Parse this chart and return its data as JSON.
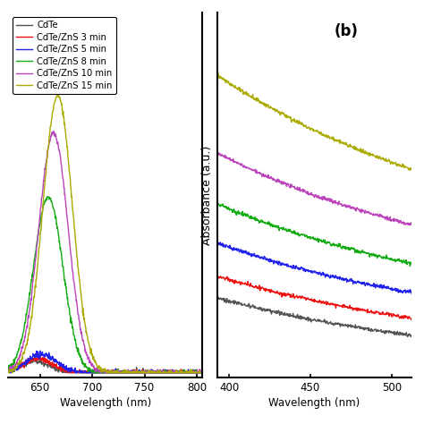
{
  "legend_labels": [
    "CdTe",
    "CdTe/ZnS 3 min",
    "CdTe/ZnS 5 min",
    "CdTe/ZnS 8 min",
    "CdTe/ZnS 10 min",
    "CdTe/ZnS 15 min"
  ],
  "colors": [
    "#555555",
    "#ee1111",
    "#2222ee",
    "#11aa11",
    "#bb44bb",
    "#aaaa00"
  ],
  "panel_b_label": "(b)",
  "ylabel_b": "Absorbance (a.u.)",
  "xlim_a": [
    620,
    805
  ],
  "xlim_b": [
    393,
    512
  ],
  "xticks_a": [
    650,
    700,
    750,
    800
  ],
  "xticks_b": [
    400,
    450,
    500
  ],
  "background_color": "#ffffff",
  "pl_peak_wl": [
    645,
    648,
    652,
    658,
    663,
    667
  ],
  "pl_amplitude": [
    0.025,
    0.03,
    0.04,
    0.38,
    0.52,
    0.6
  ],
  "pl_sigma": 14,
  "abs_base": [
    0.38,
    0.42,
    0.5,
    0.6,
    0.72,
    0.95
  ],
  "abs_slope": [
    0.006,
    0.006,
    0.006,
    0.006,
    0.006,
    0.006
  ],
  "abs_offset": [
    0.03,
    0.1,
    0.19,
    0.29,
    0.43,
    0.6
  ]
}
